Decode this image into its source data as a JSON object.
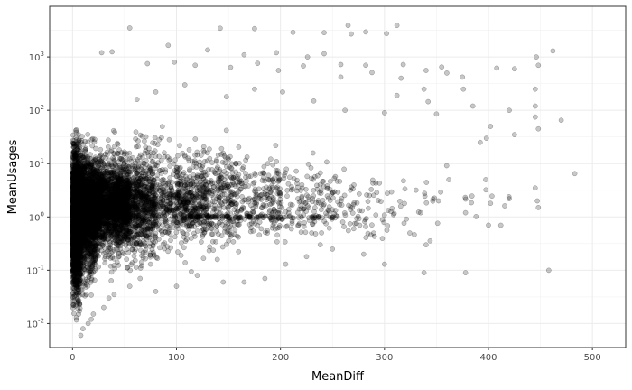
{
  "chart_data": {
    "type": "scatter",
    "title": "",
    "xlabel": "MeanDiff",
    "ylabel": "MeanUsages",
    "xlim": [
      -22,
      532
    ],
    "ylim_log10": [
      -2.45,
      3.95
    ],
    "y_scale": "log10",
    "grid": true,
    "legend": "none",
    "x_ticks": [
      {
        "value": 0,
        "label": "0"
      },
      {
        "value": 100,
        "label": "100"
      },
      {
        "value": 200,
        "label": "200"
      },
      {
        "value": 300,
        "label": "300"
      },
      {
        "value": 400,
        "label": "400"
      },
      {
        "value": 500,
        "label": "500"
      }
    ],
    "y_ticks": [
      {
        "exp": -2,
        "base": "10",
        "sup": "-2"
      },
      {
        "exp": -1,
        "base": "10",
        "sup": "-1"
      },
      {
        "exp": 0,
        "base": "10",
        "sup": "0"
      },
      {
        "exp": 1,
        "base": "10",
        "sup": "1"
      },
      {
        "exp": 2,
        "base": "10",
        "sup": "2"
      },
      {
        "exp": 3,
        "base": "10",
        "sup": "3"
      }
    ],
    "point_color": "#000000",
    "point_opacity": 0.22,
    "series": [
      {
        "points": [
          [
            55,
            3500
          ],
          [
            265,
            3900
          ],
          [
            312,
            3900
          ],
          [
            175,
            3400
          ],
          [
            142,
            3450
          ],
          [
            212,
            2900
          ],
          [
            242,
            2850
          ],
          [
            282,
            2950
          ],
          [
            268,
            2700
          ],
          [
            302,
            2750
          ],
          [
            92,
            1650
          ],
          [
            38,
            1250
          ],
          [
            28,
            1200
          ],
          [
            130,
            1350
          ],
          [
            165,
            1100
          ],
          [
            196,
            1200
          ],
          [
            226,
            1000
          ],
          [
            242,
            1150
          ],
          [
            462,
            1300
          ],
          [
            446,
            1000
          ],
          [
            72,
            750
          ],
          [
            98,
            800
          ],
          [
            118,
            700
          ],
          [
            152,
            640
          ],
          [
            178,
            760
          ],
          [
            198,
            560
          ],
          [
            222,
            680
          ],
          [
            258,
            720
          ],
          [
            282,
            700
          ],
          [
            318,
            720
          ],
          [
            355,
            650
          ],
          [
            360,
            500
          ],
          [
            408,
            620
          ],
          [
            425,
            600
          ],
          [
            448,
            700
          ],
          [
            375,
            420
          ],
          [
            258,
            420
          ],
          [
            316,
            400
          ],
          [
            288,
            510
          ],
          [
            340,
            560
          ],
          [
            338,
            250
          ],
          [
            376,
            250
          ],
          [
            312,
            190
          ],
          [
            342,
            145
          ],
          [
            385,
            120
          ],
          [
            470,
            65
          ],
          [
            445,
            75
          ],
          [
            445,
            120
          ],
          [
            445,
            250
          ],
          [
            420,
            100
          ],
          [
            350,
            85
          ],
          [
            300,
            90
          ],
          [
            262,
            100
          ],
          [
            232,
            150
          ],
          [
            202,
            220
          ],
          [
            175,
            250
          ],
          [
            148,
            180
          ],
          [
            108,
            300
          ],
          [
            80,
            220
          ],
          [
            62,
            160
          ],
          [
            398,
            30
          ],
          [
            402,
            50
          ],
          [
            425,
            35
          ],
          [
            392,
            25
          ],
          [
            448,
            45
          ],
          [
            483,
            6.5
          ],
          [
            445,
            3.5
          ],
          [
            447,
            2.0
          ],
          [
            448,
            1.5
          ],
          [
            402,
            1.8
          ],
          [
            352,
            2.0
          ],
          [
            378,
            1.2
          ],
          [
            400,
            0.7
          ],
          [
            420,
            2.2
          ],
          [
            362,
            5.0
          ],
          [
            340,
            0.3
          ],
          [
            378,
            0.09
          ],
          [
            458,
            0.1
          ],
          [
            338,
            0.09
          ],
          [
            300,
            0.13
          ],
          [
            280,
            0.2
          ],
          [
            250,
            0.25
          ],
          [
            225,
            0.18
          ],
          [
            205,
            0.13
          ],
          [
            185,
            0.07
          ],
          [
            165,
            0.06
          ],
          [
            145,
            0.06
          ],
          [
            120,
            0.08
          ],
          [
            100,
            0.05
          ],
          [
            80,
            0.04
          ],
          [
            55,
            0.05
          ],
          [
            40,
            0.035
          ],
          [
            30,
            0.02
          ],
          [
            20,
            0.015
          ],
          [
            15,
            0.01
          ],
          [
            10,
            0.008
          ],
          [
            8,
            0.006
          ],
          [
            18,
            0.012
          ],
          [
            35,
            0.03
          ],
          [
            65,
            0.07
          ]
        ],
        "bands": [
          {
            "x": [
              0,
              8
            ],
            "y": [
              0.006,
              80
            ],
            "n": 1300
          },
          {
            "x": [
              0,
              22
            ],
            "y": [
              0.02,
              60
            ],
            "n": 1700
          },
          {
            "x": [
              8,
              55
            ],
            "y": [
              0.15,
              20
            ],
            "n": 2100
          },
          {
            "x": [
              22,
              80
            ],
            "y": [
              0.05,
              60
            ],
            "n": 1000
          },
          {
            "x": [
              40,
              130
            ],
            "y": [
              0.3,
              10
            ],
            "n": 650
          },
          {
            "x": [
              60,
              160
            ],
            "y": [
              0.06,
              80
            ],
            "n": 480
          },
          {
            "x": [
              100,
              200
            ],
            "y": [
              0.15,
              40
            ],
            "n": 300
          },
          {
            "x": [
              140,
              250
            ],
            "y": [
              0.2,
              25
            ],
            "n": 200
          },
          {
            "x": [
              190,
              320
            ],
            "y": [
              0.2,
              15
            ],
            "n": 130
          },
          {
            "x": [
              240,
              420
            ],
            "y": [
              0.2,
              12
            ],
            "n": 70
          },
          {
            "x": [
              110,
              260
            ],
            "y": [
              0.9,
              1.1
            ],
            "n": 130
          },
          {
            "x": [
              0,
              500
            ],
            "y": [
              0.003,
              0.003
            ],
            "n": 900
          }
        ]
      }
    ]
  }
}
